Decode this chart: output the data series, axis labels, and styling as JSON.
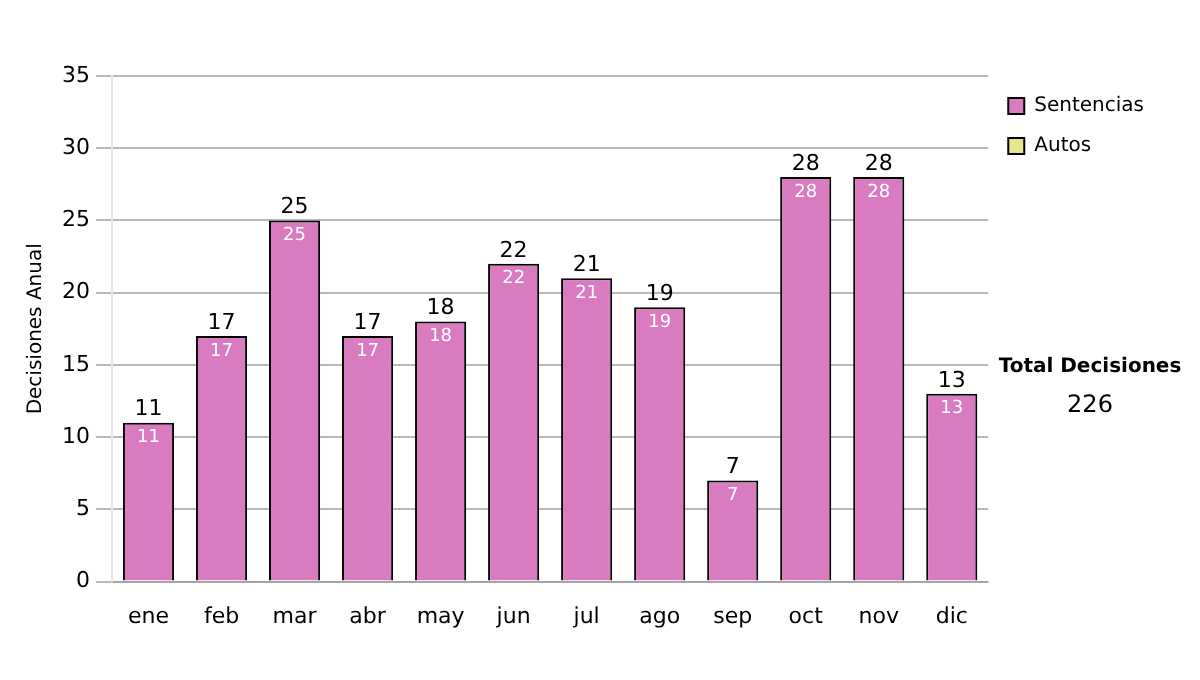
{
  "chart_data": {
    "type": "bar",
    "ylabel": "Decisiones Anual",
    "categories": [
      "ene",
      "feb",
      "mar",
      "abr",
      "may",
      "jun",
      "jul",
      "ago",
      "sep",
      "oct",
      "nov",
      "dic"
    ],
    "series": [
      {
        "name": "Sentencias",
        "color": "#d97bc0",
        "values": [
          11,
          17,
          25,
          17,
          18,
          22,
          21,
          19,
          7,
          28,
          28,
          13
        ],
        "value_labels": [
          "11",
          "17",
          "25",
          "17",
          "18",
          "22",
          "21",
          "19",
          "7",
          "28",
          "28",
          "13"
        ]
      },
      {
        "name": "Autos",
        "color": "#e6e68c",
        "values": [
          0,
          0,
          0,
          0,
          0,
          0,
          0,
          0,
          0,
          0,
          0,
          0
        ]
      }
    ],
    "stacked": true,
    "totals": [
      "11",
      "17",
      "25",
      "17",
      "18",
      "22",
      "21",
      "19",
      "7",
      "28",
      "28",
      "13"
    ],
    "ylim": [
      0,
      35
    ],
    "yticks": [
      0,
      5,
      10,
      15,
      20,
      25,
      30,
      35
    ],
    "grid": "y",
    "legend": "right",
    "annotations": [
      "Total Decisiones",
      "226"
    ]
  }
}
